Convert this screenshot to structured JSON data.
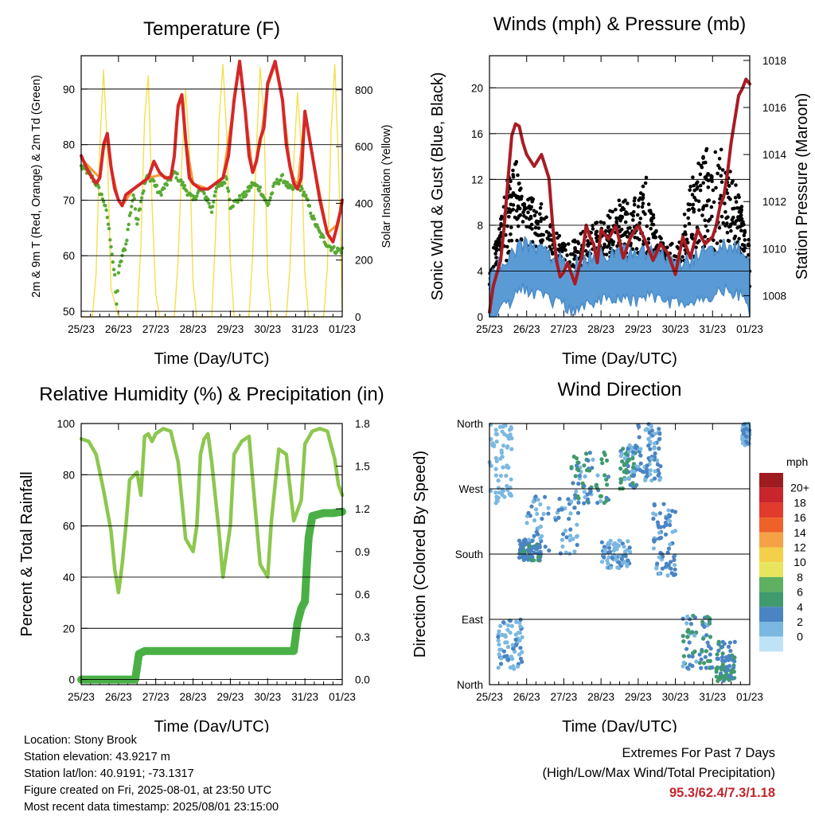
{
  "chart_data": [
    {
      "type": "line",
      "title": "Temperature (F)",
      "xlabel": "Time (Day/UTC)",
      "ylabel": "2m & 9m T (Red, Orange) & 2m Td (Green)",
      "ylabel_right": "Solar Insolation (Yellow)",
      "x_ticks": [
        "25/23",
        "26/23",
        "27/23",
        "28/23",
        "29/23",
        "30/23",
        "31/23",
        "01/23"
      ],
      "ylim": [
        49,
        96
      ],
      "y_ticks": [
        50,
        60,
        70,
        80,
        90
      ],
      "ylim_right": [
        0,
        920
      ],
      "y_ticks_right": [
        0,
        200,
        400,
        600,
        800
      ],
      "series": [
        {
          "key": "t2m",
          "color": "#d62728",
          "x": [
            0,
            0.1,
            0.2,
            0.3,
            0.4,
            0.5,
            0.55,
            0.6,
            0.7,
            0.8,
            0.9,
            1.0,
            1.1,
            1.2,
            1.4,
            1.6,
            1.8,
            1.95,
            2.1,
            2.25,
            2.4,
            2.5,
            2.55,
            2.6,
            2.7,
            2.8,
            2.9,
            3.0,
            3.2,
            3.4,
            3.6,
            3.8,
            3.95,
            4.1,
            4.25,
            4.4,
            4.5,
            4.6,
            4.7,
            4.8,
            4.9,
            5.0,
            5.2,
            5.4,
            5.5,
            5.6,
            5.7,
            5.8,
            5.9,
            6.0,
            6.2,
            6.4,
            6.6,
            6.75,
            6.85,
            6.95,
            7.0
          ],
          "y": [
            78,
            76.5,
            75,
            74,
            73,
            74,
            77,
            80,
            82,
            76,
            72,
            70,
            69,
            71,
            72,
            73,
            74,
            77,
            75,
            74,
            74,
            78,
            83,
            87,
            89,
            81,
            74,
            73,
            72,
            72,
            73,
            74,
            78,
            88,
            95,
            86,
            78,
            75,
            77,
            81,
            83,
            91,
            95,
            88,
            80,
            76,
            73,
            72,
            74,
            86,
            78,
            70,
            64,
            62.5,
            65,
            68,
            70
          ]
        },
        {
          "key": "t9m",
          "color": "#f39c39",
          "x": [
            0,
            0.5,
            0.6,
            0.7,
            0.8,
            1.0,
            1.1,
            1.4,
            1.8,
            2.1,
            2.4,
            2.5,
            2.6,
            2.7,
            2.8,
            3.0,
            3.4,
            3.8,
            4.1,
            4.25,
            4.4,
            4.6,
            4.8,
            5.0,
            5.2,
            5.4,
            5.6,
            5.8,
            6.0,
            6.2,
            6.6,
            6.85,
            7.0
          ],
          "y": [
            77.5,
            74,
            79,
            81.5,
            76,
            70,
            69,
            72,
            74,
            74.5,
            74,
            77.5,
            86.5,
            88.5,
            81,
            73,
            72,
            74,
            87.5,
            94.5,
            86,
            75,
            80,
            90.5,
            94.5,
            88,
            76,
            72,
            85.5,
            78,
            64,
            65.5,
            69.5
          ]
        },
        {
          "key": "td2m",
          "color": "#59a934",
          "x": [
            0,
            0.2,
            0.4,
            0.6,
            0.7,
            0.8,
            0.9,
            0.95,
            1.0,
            1.1,
            1.2,
            1.3,
            1.4,
            1.5,
            1.6,
            1.75,
            1.9,
            2.1,
            2.3,
            2.5,
            2.7,
            2.9,
            3.0,
            3.2,
            3.4,
            3.5,
            3.6,
            3.8,
            3.9,
            4.0,
            4.2,
            4.4,
            4.6,
            4.8,
            5.0,
            5.2,
            5.4,
            5.6,
            5.7,
            5.8,
            6.0,
            6.2,
            6.4,
            6.6,
            6.8,
            7.0
          ],
          "y": [
            76,
            75,
            73,
            70,
            67,
            62,
            56,
            51,
            57,
            60,
            62,
            67,
            71,
            66,
            70,
            74,
            74,
            71,
            73,
            75,
            73,
            71,
            70,
            72,
            70,
            68,
            72,
            73,
            74,
            69,
            70,
            71,
            73,
            72,
            69,
            73,
            74,
            72,
            72,
            73,
            71,
            67,
            64,
            62,
            61,
            61
          ]
        },
        {
          "key": "solar",
          "color": "#f5df4d",
          "axis": "right",
          "x": [
            0,
            0.1,
            0.3,
            0.4,
            0.5,
            0.6,
            0.7,
            0.8,
            1.0,
            1.1,
            1.5,
            1.6,
            1.7,
            1.8,
            1.9,
            2.0,
            2.1,
            2.5,
            2.6,
            2.7,
            2.8,
            2.9,
            3.0,
            3.1,
            3.5,
            3.6,
            3.7,
            3.8,
            3.9,
            4.0,
            4.1,
            4.5,
            4.6,
            4.7,
            4.8,
            4.9,
            5.0,
            5.1,
            5.5,
            5.6,
            5.7,
            5.8,
            5.9,
            6.0,
            6.1,
            6.5,
            6.6,
            6.7,
            6.8,
            6.9,
            7.0
          ],
          "y": [
            0,
            0,
            0,
            150,
            600,
            870,
            600,
            100,
            0,
            0,
            0,
            250,
            700,
            850,
            400,
            80,
            0,
            0,
            200,
            550,
            800,
            600,
            120,
            0,
            0,
            280,
            700,
            890,
            650,
            200,
            0,
            0,
            220,
            600,
            880,
            700,
            150,
            0,
            0,
            180,
            550,
            790,
            600,
            150,
            0,
            0,
            170,
            650,
            890,
            550,
            30
          ]
        }
      ]
    },
    {
      "type": "scatter",
      "title": "Winds (mph) & Pressure (mb)",
      "xlabel": "Time (Day/UTC)",
      "ylabel": "Sonic Wind & Gust (Blue, Black)",
      "ylabel_right": "Station Pressure (Maroon)",
      "x_ticks": [
        "25/23",
        "26/23",
        "27/23",
        "28/23",
        "29/23",
        "30/23",
        "31/23",
        "01/23"
      ],
      "ylim": [
        0,
        22.8
      ],
      "y_ticks": [
        0,
        4,
        8,
        12,
        16,
        20
      ],
      "ylim_right": [
        1007.1,
        1018.2
      ],
      "y_ticks_right": [
        1008,
        1010,
        1012,
        1014,
        1016,
        1018
      ],
      "wind_mean_x": [
        0,
        0.3,
        0.6,
        0.8,
        1.0,
        1.3,
        1.6,
        2.0,
        2.2,
        2.5,
        2.8,
        3.0,
        3.3,
        3.6,
        4.0,
        4.3,
        4.6,
        5.0,
        5.3,
        5.6,
        6.0,
        6.3,
        6.6,
        6.8,
        7.0
      ],
      "wind_mean_y": [
        1.5,
        3,
        3.5,
        4.5,
        4.5,
        4,
        3.5,
        3.2,
        2.5,
        3,
        3.5,
        3.5,
        3.8,
        3.8,
        3.4,
        4,
        3.5,
        3.3,
        3,
        3.5,
        3.8,
        4.5,
        4.2,
        4,
        2.5
      ],
      "gust_envelope_x": [
        0,
        0.3,
        0.5,
        0.7,
        0.9,
        1.2,
        1.5,
        1.8,
        2.1,
        2.4,
        2.7,
        3.0,
        3.3,
        3.6,
        3.9,
        4.2,
        4.5,
        4.8,
        5.1,
        5.4,
        5.7,
        6.0,
        6.3,
        6.6,
        6.8,
        7.0
      ],
      "gust_envelope_y": [
        4,
        8,
        13,
        14,
        11,
        10,
        9,
        7,
        6,
        7,
        8,
        8,
        9,
        10,
        10,
        12,
        7,
        6,
        6,
        11,
        14,
        15,
        14,
        12,
        9,
        6
      ],
      "pressure_x": [
        0,
        0.1,
        0.3,
        0.4,
        0.5,
        0.6,
        0.7,
        0.8,
        0.9,
        1.0,
        1.2,
        1.4,
        1.6,
        1.7,
        1.8,
        1.9,
        2.0,
        2.1,
        2.3,
        2.5,
        2.6,
        2.7,
        2.8,
        2.9,
        3.0,
        3.2,
        3.4,
        3.6,
        3.8,
        4.0,
        4.2,
        4.4,
        4.6,
        4.8,
        5.0,
        5.2,
        5.4,
        5.6,
        5.8,
        6.0,
        6.1,
        6.2,
        6.3,
        6.4,
        6.5,
        6.6,
        6.7,
        6.8,
        6.9,
        7.0
      ],
      "pressure_y": [
        1007.3,
        1008.4,
        1009.5,
        1011,
        1013,
        1014.8,
        1015.3,
        1015.2,
        1014.5,
        1014,
        1013.5,
        1014,
        1013,
        1011,
        1009.5,
        1008.8,
        1009,
        1009.4,
        1008.5,
        1009.8,
        1011,
        1010.5,
        1010.2,
        1009.4,
        1010.8,
        1010.4,
        1011,
        1009.6,
        1010.5,
        1011,
        1010.3,
        1009.5,
        1010.2,
        1009.8,
        1008.9,
        1010.5,
        1009.6,
        1010.8,
        1010.2,
        1010.5,
        1011,
        1011.8,
        1012.2,
        1013.2,
        1014.5,
        1015.5,
        1016.5,
        1016.8,
        1017.2,
        1017
      ]
    },
    {
      "type": "line",
      "title": "Relative Humidity (%) & Precipitation (in)",
      "xlabel": "Time (Day/UTC)",
      "ylabel": "Percent & Total Rainfall",
      "x_ticks": [
        "25/23",
        "26/23",
        "27/23",
        "28/23",
        "29/23",
        "30/23",
        "31/23",
        "01/23"
      ],
      "ylim": [
        -2,
        100
      ],
      "y_ticks": [
        0,
        20,
        40,
        60,
        80,
        100
      ],
      "ylim_right": [
        -0.036,
        1.8
      ],
      "y_ticks_right": [
        "0.0",
        "0.3",
        "0.6",
        "0.9",
        "1.2",
        "1.5",
        "1.8"
      ],
      "series": [
        {
          "key": "rh",
          "color": "#8cc74f",
          "x": [
            0,
            0.2,
            0.4,
            0.6,
            0.8,
            0.9,
            1.0,
            1.1,
            1.2,
            1.3,
            1.5,
            1.6,
            1.7,
            1.8,
            1.9,
            2.0,
            2.2,
            2.4,
            2.6,
            2.8,
            3.0,
            3.1,
            3.2,
            3.3,
            3.4,
            3.5,
            3.7,
            3.8,
            4.0,
            4.1,
            4.3,
            4.5,
            4.6,
            4.8,
            5.0,
            5.1,
            5.3,
            5.5,
            5.7,
            5.9,
            6.0,
            6.2,
            6.4,
            6.6,
            6.8,
            6.9,
            7.0
          ],
          "y": [
            94,
            93,
            88,
            74,
            58,
            43,
            34,
            45,
            60,
            78,
            81,
            72,
            95,
            96,
            93,
            96,
            98,
            97,
            85,
            55,
            50,
            60,
            88,
            94,
            96,
            85,
            57,
            40,
            60,
            88,
            93,
            95,
            78,
            45,
            40,
            62,
            90,
            88,
            62,
            70,
            92,
            97,
            98,
            97,
            86,
            76,
            72
          ]
        },
        {
          "key": "precip",
          "color": "#4ab046",
          "axis": "right",
          "x": [
            0,
            0.5,
            1.0,
            1.45,
            1.55,
            1.7,
            2.0,
            3.0,
            4.0,
            5.0,
            5.7,
            5.75,
            5.8,
            5.9,
            6.0,
            6.05,
            6.1,
            6.2,
            6.5,
            6.75,
            7.0
          ],
          "y": [
            0,
            0,
            0,
            0,
            0.18,
            0.2,
            0.2,
            0.2,
            0.2,
            0.2,
            0.2,
            0.3,
            0.4,
            0.5,
            0.55,
            0.8,
            1.0,
            1.15,
            1.17,
            1.17,
            1.18
          ]
        }
      ]
    },
    {
      "type": "scatter",
      "title": "Wind Direction",
      "xlabel": "Time (Day/UTC)",
      "ylabel": "Direction (Colored By Speed)",
      "x_ticks": [
        "25/23",
        "26/23",
        "27/23",
        "28/23",
        "29/23",
        "30/23",
        "31/23",
        "01/23"
      ],
      "y_ticks": [
        "North",
        "East",
        "South",
        "West",
        "North"
      ],
      "ylim": [
        0,
        360
      ],
      "legend_title": "mph",
      "legend_labels": [
        "20+",
        "18",
        "16",
        "14",
        "12",
        "10",
        "8",
        "6",
        "4",
        "2",
        "0"
      ],
      "legend_colors": [
        "#9e1b1f",
        "#c9252c",
        "#e23a2b",
        "#ee6228",
        "#f5a246",
        "#f4d04a",
        "#e7e55e",
        "#5fb060",
        "#3f9a6d",
        "#4a84c3",
        "#7bb8e1",
        "#bfe3f6"
      ],
      "clusters": [
        {
          "x": [
            0.0,
            0.6
          ],
          "dir": [
            250,
            360
          ],
          "speed": [
            1,
            3
          ]
        },
        {
          "x": [
            0.2,
            0.9
          ],
          "dir": [
            20,
            90
          ],
          "speed": [
            1,
            4
          ]
        },
        {
          "x": [
            0.8,
            1.4
          ],
          "dir": [
            170,
            200
          ],
          "speed": [
            3,
            6
          ]
        },
        {
          "x": [
            1.0,
            2.4
          ],
          "dir": [
            180,
            260
          ],
          "speed": [
            1,
            5
          ]
        },
        {
          "x": [
            2.2,
            3.2
          ],
          "dir": [
            250,
            320
          ],
          "speed": [
            2,
            7
          ]
        },
        {
          "x": [
            3.0,
            3.8
          ],
          "dir": [
            160,
            200
          ],
          "speed": [
            1,
            4
          ]
        },
        {
          "x": [
            3.5,
            4.0
          ],
          "dir": [
            270,
            330
          ],
          "speed": [
            2,
            7
          ]
        },
        {
          "x": [
            4.0,
            4.6
          ],
          "dir": [
            280,
            360
          ],
          "speed": [
            1,
            5
          ]
        },
        {
          "x": [
            4.4,
            5.0
          ],
          "dir": [
            150,
            250
          ],
          "speed": [
            2,
            5
          ]
        },
        {
          "x": [
            5.2,
            6.0
          ],
          "dir": [
            20,
            95
          ],
          "speed": [
            2,
            7
          ]
        },
        {
          "x": [
            6.1,
            6.6
          ],
          "dir": [
            5,
            60
          ],
          "speed": [
            3,
            7
          ]
        },
        {
          "x": [
            6.8,
            7.0
          ],
          "dir": [
            330,
            360
          ],
          "speed": [
            2,
            4
          ]
        }
      ]
    }
  ],
  "footer": {
    "location": "Location: Stony Brook",
    "elevation": "Station elevation: 43.9217 m",
    "latlon": "Station lat/lon: 40.9191; -73.1317",
    "created": "Figure created on Fri, 2025-08-01, at 23:50 UTC",
    "recent": "Most recent data timestamp: 2025/08/01 23:15:00",
    "extremes_title": "Extremes For Past 7 Days",
    "extremes_sub": "(High/Low/Max Wind/Total Precipitation)",
    "extremes_values": "95.3/62.4/7.3/1.18"
  }
}
